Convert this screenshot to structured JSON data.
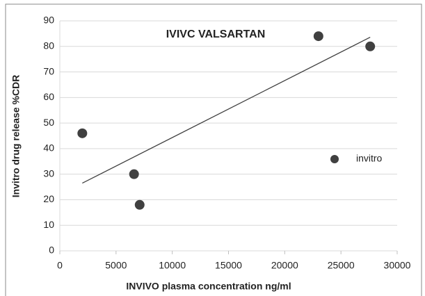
{
  "chart_data": {
    "type": "scatter",
    "title": "IVIVC  VALSARTAN",
    "xlabel": "INVIVO plasma concentration ng/ml",
    "ylabel": "Invitro drug release %CDR",
    "series": [
      {
        "name": "invitro",
        "color": "#404040",
        "x": [
          2000,
          6600,
          7100,
          23000,
          27600
        ],
        "values": [
          46,
          30,
          18,
          84,
          80
        ]
      }
    ],
    "xlim": [
      0,
      30000
    ],
    "xticks": [
      0,
      5000,
      10000,
      15000,
      20000,
      25000,
      30000
    ],
    "ylim": [
      0,
      90
    ],
    "yticks": [
      0,
      10,
      20,
      30,
      40,
      50,
      60,
      70,
      80,
      90
    ],
    "grid": true,
    "legend": "right",
    "trendline": "linear"
  }
}
